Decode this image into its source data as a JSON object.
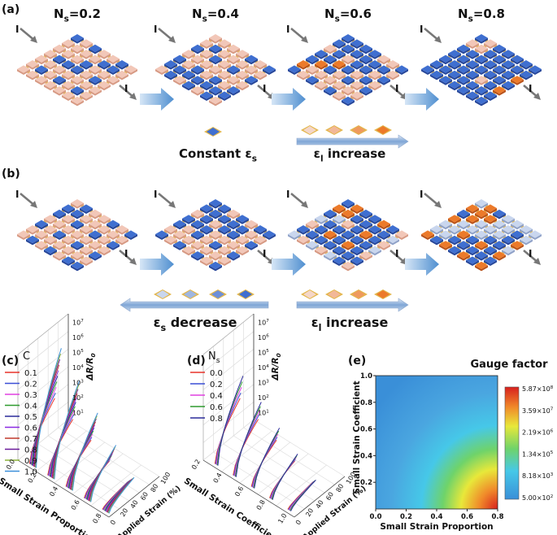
{
  "panel_a": {
    "label": "(a)",
    "current": "I",
    "titles": [
      {
        "text": "N",
        "sub": "s",
        "rest": "=0.2"
      },
      {
        "text": "N",
        "sub": "s",
        "rest": "=0.4"
      },
      {
        "text": "N",
        "sub": "s",
        "rest": "=0.6"
      },
      {
        "text": "N",
        "sub": "s",
        "rest": "=0.8"
      }
    ],
    "caption_left": {
      "text": "Constant ε",
      "sub": "s"
    },
    "caption_right": {
      "text": "ε",
      "sub": "l",
      "rest": " increase"
    }
  },
  "panel_b": {
    "label": "(b)",
    "current": "I",
    "caption_left": {
      "text": "ε",
      "sub": "s",
      "rest": " decrease"
    },
    "caption_right": {
      "text": "ε",
      "sub": "l",
      "rest": " increase"
    }
  },
  "panel_c": {
    "label": "(c)",
    "legend_title": "C",
    "legend": [
      {
        "label": "0.1",
        "color": "#e8332a"
      },
      {
        "label": "0.2",
        "color": "#3a4fd6"
      },
      {
        "label": "0.3",
        "color": "#e040e0"
      },
      {
        "label": "0.4",
        "color": "#2e9a2e"
      },
      {
        "label": "0.5",
        "color": "#2a2a9a"
      },
      {
        "label": "0.6",
        "color": "#8a2be2"
      },
      {
        "label": "0.7",
        "color": "#c0392b"
      },
      {
        "label": "0.8",
        "color": "#6a1b9a"
      },
      {
        "label": "0.9",
        "color": "#8cb43c"
      },
      {
        "label": "1.0",
        "color": "#3b8fd9"
      }
    ],
    "x_axis": "Small Strain Proportion",
    "y_axis": "Applied Strain (%)",
    "z_axis": {
      "text": "ΔR/R",
      "sub": "0"
    },
    "x_ticks": [
      "0.0",
      "0.2",
      "0.4",
      "0.6",
      "0.8"
    ],
    "y_ticks": [
      "0",
      "20",
      "40",
      "60",
      "80",
      "100"
    ],
    "z_ticks": [
      {
        "base": "10",
        "sup": "1"
      },
      {
        "base": "10",
        "sup": "2"
      },
      {
        "base": "10",
        "sup": "3"
      },
      {
        "base": "10",
        "sup": "4"
      },
      {
        "base": "10",
        "sup": "5"
      },
      {
        "base": "10",
        "sup": "6"
      },
      {
        "base": "10",
        "sup": "7"
      }
    ]
  },
  "panel_d": {
    "label": "(d)",
    "legend_title": {
      "text": "N",
      "sub": "s"
    },
    "legend": [
      {
        "label": "0.0",
        "color": "#e8332a"
      },
      {
        "label": "0.2",
        "color": "#3a4fd6"
      },
      {
        "label": "0.4",
        "color": "#e040e0"
      },
      {
        "label": "0.6",
        "color": "#2e9a2e"
      },
      {
        "label": "0.8",
        "color": "#2a2a9a"
      }
    ],
    "x_axis": "Small Strain Coefficient",
    "y_axis": "Applied Strain (%)",
    "z_axis": {
      "text": "ΔR/R",
      "sub": "0"
    },
    "x_ticks": [
      "0.2",
      "0.4",
      "0.6",
      "0.8",
      "1.0"
    ],
    "y_ticks": [
      "0",
      "20",
      "40",
      "60",
      "80",
      "100"
    ],
    "z_ticks": [
      {
        "base": "10",
        "sup": "1"
      },
      {
        "base": "10",
        "sup": "2"
      },
      {
        "base": "10",
        "sup": "3"
      },
      {
        "base": "10",
        "sup": "4"
      },
      {
        "base": "10",
        "sup": "5"
      },
      {
        "base": "10",
        "sup": "6"
      },
      {
        "base": "10",
        "sup": "7"
      }
    ]
  },
  "panel_e": {
    "label": "(e)",
    "title": "Gauge factor",
    "colorbar": [
      {
        "base": "5.87×10",
        "sup": "8"
      },
      {
        "base": "3.59×10",
        "sup": "7"
      },
      {
        "base": "2.19×10",
        "sup": "6"
      },
      {
        "base": "1.34×10",
        "sup": "5"
      },
      {
        "base": "8.18×10",
        "sup": "3"
      },
      {
        "base": "5.00×10",
        "sup": "2"
      }
    ],
    "x_axis": "Small Strain Proportion",
    "y_axis": "Small Strain Coefficient",
    "x_ticks": [
      "0.0",
      "0.2",
      "0.4",
      "0.6",
      "0.8"
    ],
    "y_ticks": [
      "0.2",
      "0.4",
      "0.6",
      "0.8",
      "1.0"
    ]
  }
}
